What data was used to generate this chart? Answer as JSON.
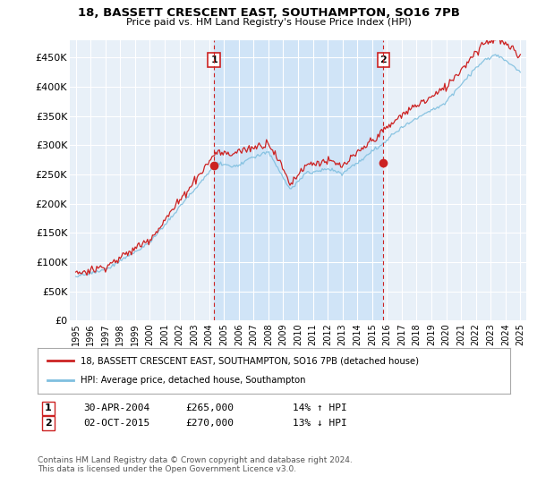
{
  "title1": "18, BASSETT CRESCENT EAST, SOUTHAMPTON, SO16 7PB",
  "title2": "Price paid vs. HM Land Registry's House Price Index (HPI)",
  "ylabel_ticks": [
    "£0",
    "£50K",
    "£100K",
    "£150K",
    "£200K",
    "£250K",
    "£300K",
    "£350K",
    "£400K",
    "£450K"
  ],
  "ytick_values": [
    0,
    50000,
    100000,
    150000,
    200000,
    250000,
    300000,
    350000,
    400000,
    450000
  ],
  "ylim": [
    0,
    480000
  ],
  "xlim_start": 1994.6,
  "xlim_end": 2025.4,
  "background_color": "#ffffff",
  "plot_bg_color": "#e8f0f8",
  "highlight_bg_color": "#d0e4f7",
  "grid_color": "#ffffff",
  "hpi_color": "#7fbfdf",
  "price_color": "#cc2222",
  "sale1_x": 2004.33,
  "sale1_y": 265000,
  "sale2_x": 2015.75,
  "sale2_y": 270000,
  "legend_label1": "18, BASSETT CRESCENT EAST, SOUTHAMPTON, SO16 7PB (detached house)",
  "legend_label2": "HPI: Average price, detached house, Southampton",
  "annotation1_date": "30-APR-2004",
  "annotation1_price": "£265,000",
  "annotation1_hpi": "14% ↑ HPI",
  "annotation2_date": "02-OCT-2015",
  "annotation2_price": "£270,000",
  "annotation2_hpi": "13% ↓ HPI",
  "footer": "Contains HM Land Registry data © Crown copyright and database right 2024.\nThis data is licensed under the Open Government Licence v3.0.",
  "xtick_years": [
    1995,
    1996,
    1997,
    1998,
    1999,
    2000,
    2001,
    2002,
    2003,
    2004,
    2005,
    2006,
    2007,
    2008,
    2009,
    2010,
    2011,
    2012,
    2013,
    2014,
    2015,
    2016,
    2017,
    2018,
    2019,
    2020,
    2021,
    2022,
    2023,
    2024,
    2025
  ]
}
